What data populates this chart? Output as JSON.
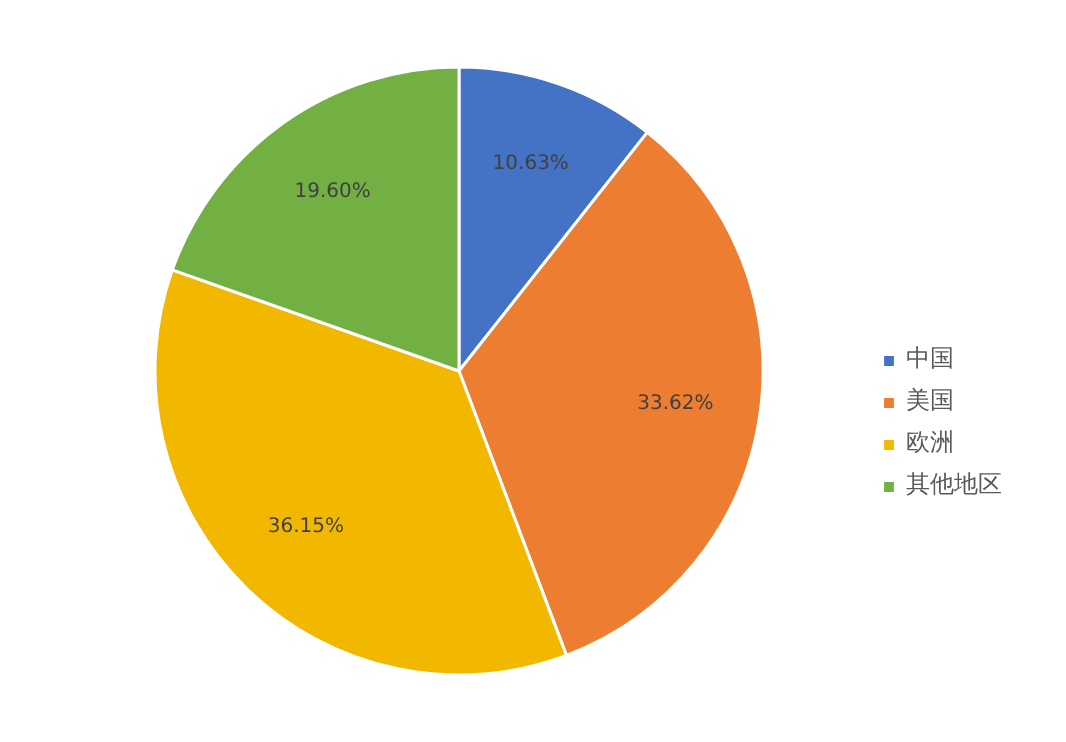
{
  "chart_data": {
    "type": "pie",
    "categories": [
      "中国",
      "美国",
      "欧洲",
      "其他地区"
    ],
    "values": [
      10.63,
      33.62,
      36.15,
      19.6
    ],
    "colors": [
      "#4472c4",
      "#ed7d31",
      "#f2b800",
      "#72b043"
    ],
    "value_labels": [
      "10.63%",
      "33.62%",
      "36.15%",
      "19.60%"
    ],
    "legend": "right"
  }
}
